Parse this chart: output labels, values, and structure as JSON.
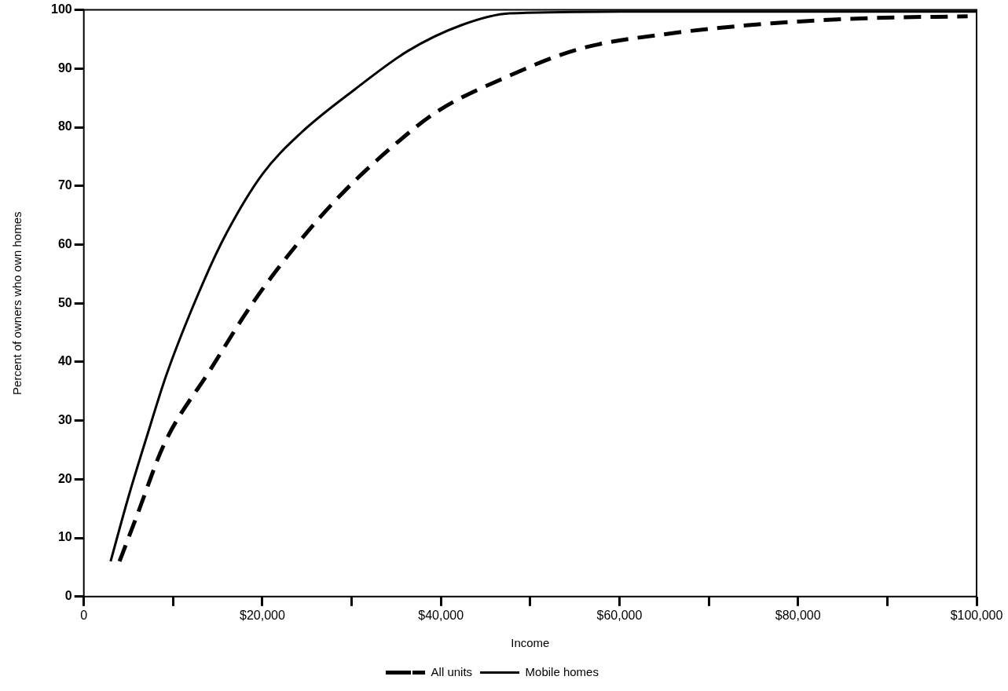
{
  "chart_data": {
    "type": "line",
    "xlabel": "Income",
    "ylabel": "Percent of owners who own homes",
    "xlim": [
      0,
      100000
    ],
    "ylim": [
      0,
      100
    ],
    "xticks": [
      {
        "value": 0,
        "label": "0"
      },
      {
        "value": 10000,
        "label": null
      },
      {
        "value": 20000,
        "label": "$20,000"
      },
      {
        "value": 30000,
        "label": null
      },
      {
        "value": 40000,
        "label": "$40,000"
      },
      {
        "value": 50000,
        "label": null
      },
      {
        "value": 60000,
        "label": "$60,000"
      },
      {
        "value": 70000,
        "label": null
      },
      {
        "value": 80000,
        "label": "$80,000"
      },
      {
        "value": 90000,
        "label": null
      },
      {
        "value": 100000,
        "label": "$100,000"
      }
    ],
    "yticks": [
      0,
      10,
      20,
      30,
      40,
      50,
      60,
      70,
      80,
      90,
      100
    ],
    "grid": false,
    "legend": "bottom",
    "marker": "none",
    "series": [
      {
        "name": "All units",
        "color": "#000000",
        "line_style": "dashed",
        "x": [
          4000,
          6000,
          9000,
          14100,
          18900,
          23700,
          28800,
          34800,
          39600,
          47700,
          55400,
          65800,
          77000,
          88000,
          99000
        ],
        "values": [
          6,
          14,
          26,
          38.5,
          50,
          59.7,
          68.5,
          77,
          82.7,
          88.8,
          93.3,
          96,
          97.7,
          98.6,
          98.9
        ]
      },
      {
        "name": "Mobile homes",
        "color": "#000000",
        "line_style": "solid",
        "x": [
          3000,
          5000,
          7000,
          9300,
          13500,
          16000,
          20000,
          24300,
          30400,
          36300,
          42300,
          47700,
          60000,
          80000,
          100000
        ],
        "values": [
          6,
          17,
          27,
          38,
          54,
          62,
          72,
          79,
          86.5,
          93,
          97.4,
          99.4,
          99.7,
          99.7,
          99.7
        ]
      }
    ]
  }
}
